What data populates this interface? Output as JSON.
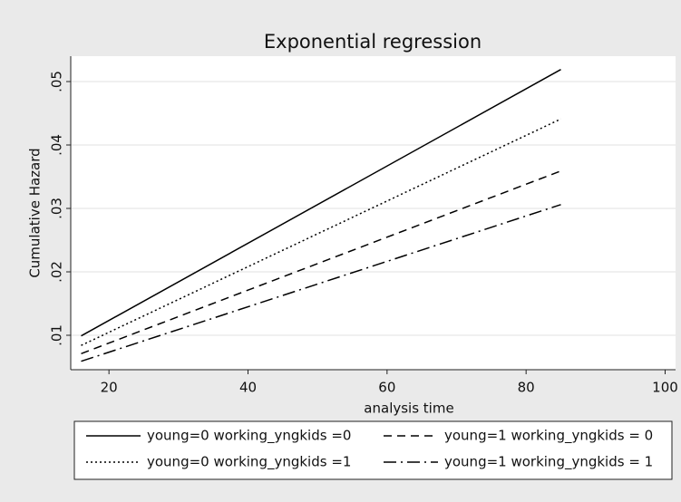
{
  "chart_data": {
    "type": "line",
    "title": "Exponential regression",
    "xlabel": "analysis time",
    "ylabel": "Cumulative Hazard",
    "x": [
      16,
      85
    ],
    "series": [
      {
        "name": "young=0 working_yngkids =0",
        "color": "#000000",
        "dash": "solid",
        "values": [
          0.0099,
          0.0519
        ]
      },
      {
        "name": "young=1 working_yngkids = 0",
        "color": "#000000",
        "dash": "dash",
        "values": [
          0.0071,
          0.0359
        ]
      },
      {
        "name": "young=0 working_yngkids =1",
        "color": "#000000",
        "dash": "dot",
        "values": [
          0.0084,
          0.0441
        ]
      },
      {
        "name": "young=1 working_yngkids = 1",
        "color": "#000000",
        "dash": "dashdot",
        "values": [
          0.0059,
          0.0306
        ]
      }
    ],
    "xlim": [
      14.5,
      101.5
    ],
    "xticks": [
      20,
      40,
      60,
      80,
      100
    ],
    "ylim": [
      0.00457,
      0.054
    ],
    "yticks": [
      {
        "value": 0.01,
        "label": ".01"
      },
      {
        "value": 0.02,
        "label": ".02"
      },
      {
        "value": 0.03,
        "label": ".03"
      },
      {
        "value": 0.04,
        "label": ".04"
      },
      {
        "value": 0.05,
        "label": ".05"
      }
    ],
    "grid": true,
    "legend": "bottom"
  }
}
